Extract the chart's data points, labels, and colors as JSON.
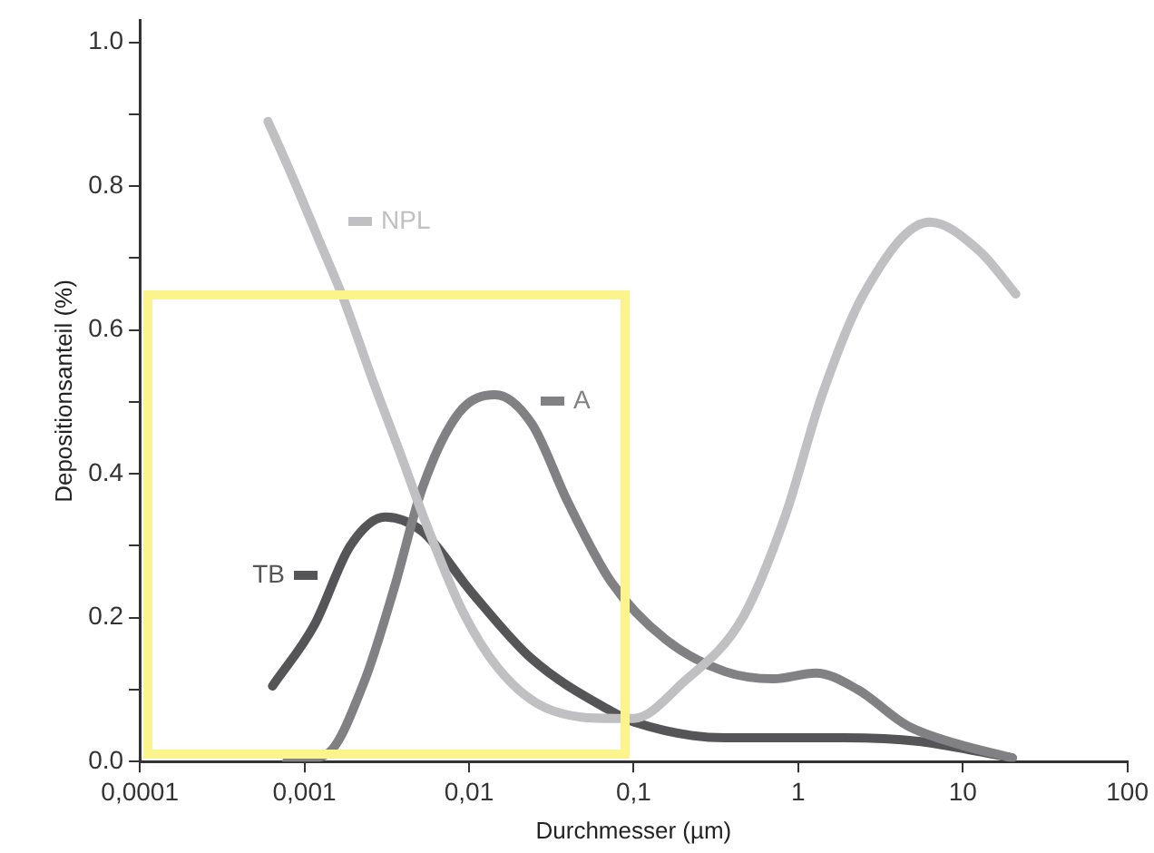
{
  "chart_data": {
    "type": "line",
    "xlabel": "Durchmesser (µm)",
    "ylabel": "Depositionsanteil (%)",
    "log": "x",
    "xlim": [
      0.0001,
      100
    ],
    "ylim": [
      0,
      1.03
    ],
    "xticks": [
      {
        "value": 0.0001,
        "label": "0,0001"
      },
      {
        "value": 0.001,
        "label": "0,001"
      },
      {
        "value": 0.01,
        "label": "0,01"
      },
      {
        "value": 0.1,
        "label": "0,1"
      },
      1,
      10,
      100
    ],
    "yticks": [
      {
        "value": 0,
        "label": "0.0"
      },
      {
        "value": 0.1,
        "label": null
      },
      {
        "value": 0.2,
        "label": "0.2"
      },
      {
        "value": 0.3,
        "label": null
      },
      {
        "value": 0.4,
        "label": "0.4"
      },
      {
        "value": 0.5,
        "label": null
      },
      {
        "value": 0.6,
        "label": "0.6"
      },
      {
        "value": 0.7,
        "label": null
      },
      {
        "value": 0.8,
        "label": "0.8"
      },
      {
        "value": 0.9,
        "label": null
      },
      {
        "value": 1.0,
        "label": "1.0"
      }
    ],
    "grid": false,
    "legend": "top left",
    "marker": "none",
    "line_style": "solid",
    "series": [
      {
        "name": "NPL",
        "color": "#c0c0c3",
        "x": [
          0.0006,
          0.00082,
          0.0012,
          0.00175,
          0.0026,
          0.0038,
          0.0055,
          0.0091,
          0.015,
          0.029,
          0.079,
          0.1,
          0.2,
          0.46,
          0.83,
          1.4,
          2.5,
          6.3,
          12.6,
          21
        ],
        "values": [
          0.89,
          0.82,
          0.73,
          0.64,
          0.53,
          0.43,
          0.33,
          0.21,
          0.13,
          0.075,
          0.06,
          0.06,
          0.11,
          0.2,
          0.34,
          0.51,
          0.65,
          0.75,
          0.71,
          0.65
        ]
      },
      {
        "name": "A",
        "color": "#818184",
        "x": [
          0.00078,
          0.00136,
          0.0023,
          0.0035,
          0.0052,
          0.0087,
          0.0144,
          0.024,
          0.04,
          0.073,
          0.156,
          0.36,
          0.71,
          1.28,
          2.3,
          4.6,
          9.1,
          20
        ],
        "values": [
          0,
          0.01,
          0.11,
          0.24,
          0.38,
          0.485,
          0.51,
          0.47,
          0.36,
          0.25,
          0.17,
          0.125,
          0.115,
          0.123,
          0.1,
          0.05,
          0.025,
          0.005
        ]
      },
      {
        "name": "TB",
        "color": "#555558",
        "x": [
          0.00064,
          0.00115,
          0.0019,
          0.0031,
          0.0052,
          0.0104,
          0.024,
          0.073,
          0.1,
          0.36,
          1.9,
          5.4,
          20
        ],
        "values": [
          0.105,
          0.19,
          0.3,
          0.34,
          0.32,
          0.235,
          0.143,
          0.07,
          0.055,
          0.033,
          0.033,
          0.028,
          0.005
        ]
      }
    ]
  }
}
